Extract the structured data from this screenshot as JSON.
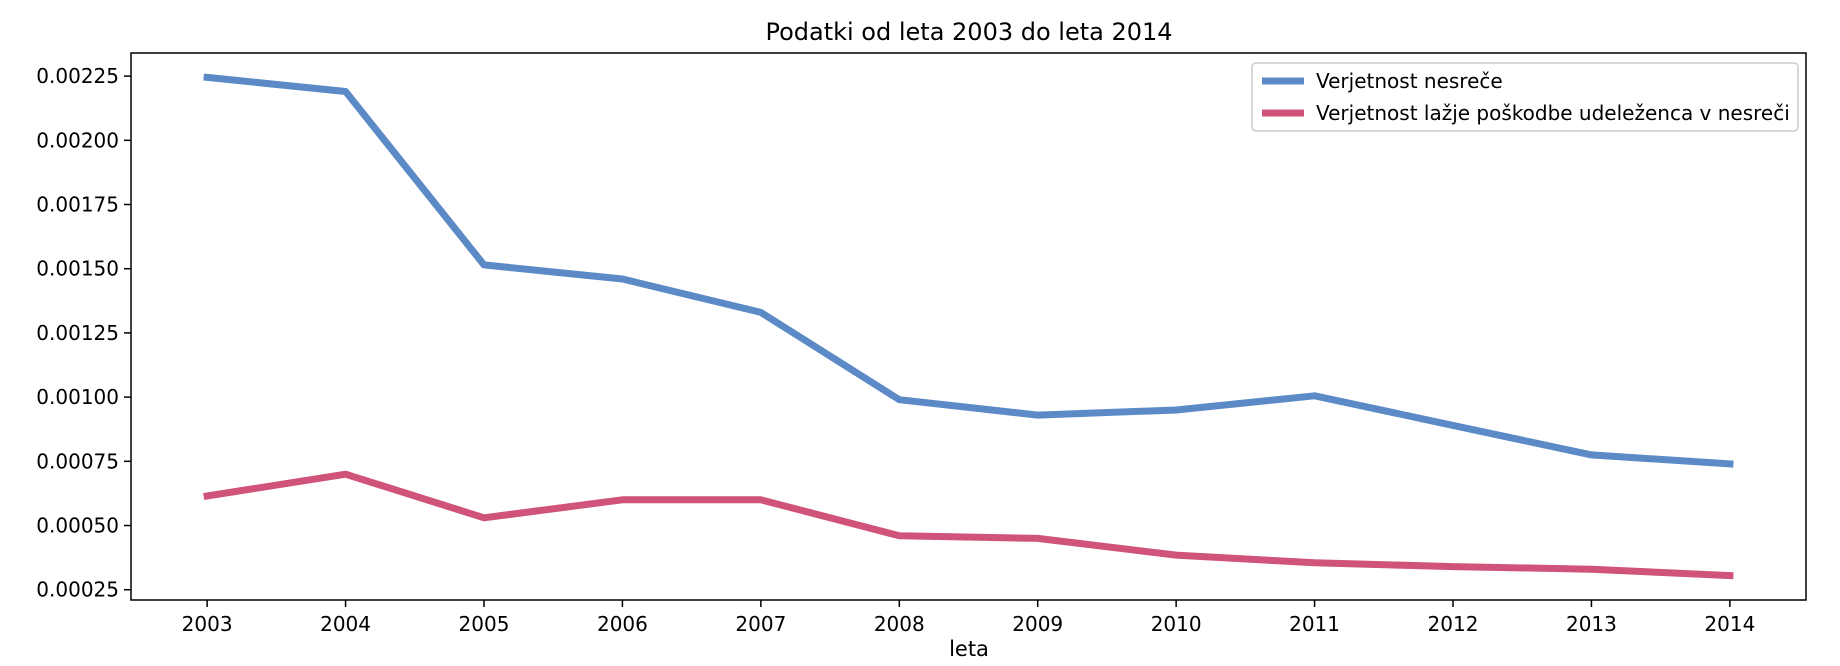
{
  "chart_data": {
    "type": "line",
    "title": "Podatki od leta 2003 do leta 2014",
    "xlabel": "leta",
    "ylabel": "",
    "x": [
      2003,
      2004,
      2005,
      2006,
      2007,
      2008,
      2009,
      2010,
      2011,
      2012,
      2013,
      2014
    ],
    "series": [
      {
        "name": "Verjetnost nesreče",
        "color": "#5b8ac6",
        "values": [
          0.002245,
          0.00219,
          0.001515,
          0.00146,
          0.00133,
          0.00099,
          0.00093,
          0.00095,
          0.001005,
          0.00089,
          0.000775,
          0.00074
        ]
      },
      {
        "name": "Verjetnost lažje poškodbe udeleženca v nesreči",
        "color": "#d05479",
        "values": [
          0.000615,
          0.0007,
          0.00053,
          0.0006,
          0.0006,
          0.00046,
          0.00045,
          0.000385,
          0.000355,
          0.00034,
          0.00033,
          0.000305
        ]
      }
    ],
    "yticks": [
      "0.00025",
      "0.00050",
      "0.00075",
      "0.00100",
      "0.00125",
      "0.00150",
      "0.00175",
      "0.00200",
      "0.00225"
    ],
    "ytick_values": [
      0.00025,
      0.0005,
      0.00075,
      0.001,
      0.00125,
      0.0015,
      0.00175,
      0.002,
      0.00225
    ],
    "xticks": [
      "2003",
      "2004",
      "2005",
      "2006",
      "2007",
      "2008",
      "2009",
      "2010",
      "2011",
      "2012",
      "2013",
      "2014"
    ],
    "xlim": [
      2002.45,
      2014.55
    ],
    "ylim": [
      0.00021,
      0.00234
    ],
    "grid": false,
    "legend_position": "top-right"
  }
}
